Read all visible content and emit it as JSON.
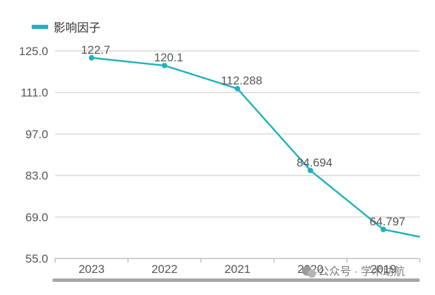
{
  "chart_data": {
    "type": "line",
    "title": "",
    "xlabel": "",
    "ylabel": "",
    "categories": [
      "2023",
      "2022",
      "2021",
      "2020",
      "2019"
    ],
    "series": [
      {
        "name": "影响因子",
        "values": [
          122.7,
          120.1,
          112.288,
          84.694,
          64.797
        ],
        "labels": [
          "122.7",
          "120.1",
          "112.288",
          "84.694",
          "64.797"
        ]
      }
    ],
    "trailing_value": 62.3,
    "ylim": [
      55.0,
      125.0
    ],
    "yticks": [
      "125.0",
      "111.0",
      "97.0",
      "83.0",
      "69.0",
      "55.0"
    ],
    "grid": true,
    "legend": "top-left",
    "colors": {
      "series": "#1fb2bd",
      "grid": "#d9d9d9",
      "axis": "#bfbfbf",
      "scrollbar": "#a6a6a6"
    }
  },
  "watermark": {
    "icon": "wechat-icon",
    "text": "公众号 · 学术助航"
  }
}
